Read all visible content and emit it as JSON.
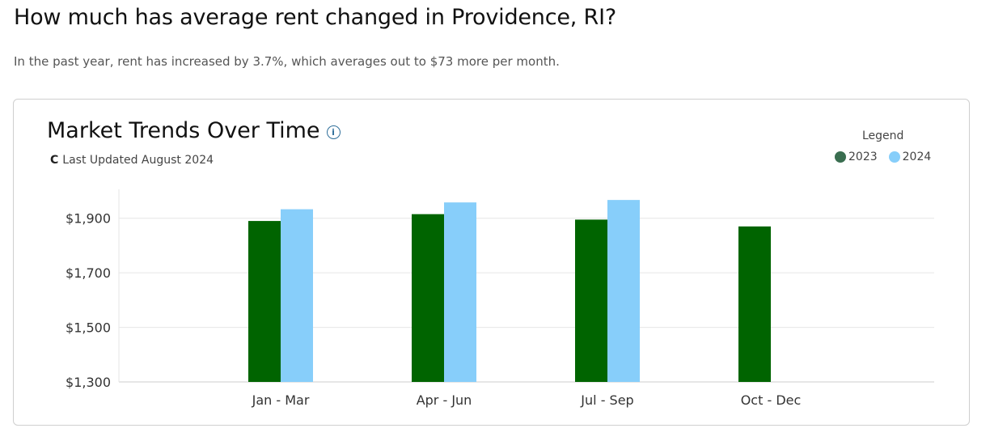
{
  "headline": "How much has average rent changed in Providence, RI?",
  "summary": "In the past year, rent has increased by 3.7%, which averages out to $73 more per month.",
  "card": {
    "title": "Market Trends Over Time",
    "info_icon": "info-icon",
    "refresh_icon": "refresh-icon",
    "refresh_glyph": "C",
    "updated": "Last Updated August 2024",
    "legend_title": "Legend"
  },
  "colors": {
    "2023": "#006400",
    "2024": "#87cefa",
    "grid": "#e6e6e6",
    "axis": "#cccccc"
  },
  "chart_data": {
    "type": "bar",
    "title": "Market Trends Over Time",
    "categories": [
      "Jan - Mar",
      "Apr - Jun",
      "Jul - Sep",
      "Oct - Dec"
    ],
    "series": [
      {
        "name": "2023",
        "values": [
          1890,
          1915,
          1895,
          1870
        ]
      },
      {
        "name": "2024",
        "values": [
          1933,
          1958,
          1967,
          null
        ]
      }
    ],
    "yticks": [
      1300,
      1500,
      1700,
      1900
    ],
    "ytick_labels": [
      "$1,300",
      "$1,500",
      "$1,700",
      "$1,900"
    ],
    "ylim": [
      1300,
      2000
    ],
    "grid": true,
    "legend": "top-right"
  }
}
